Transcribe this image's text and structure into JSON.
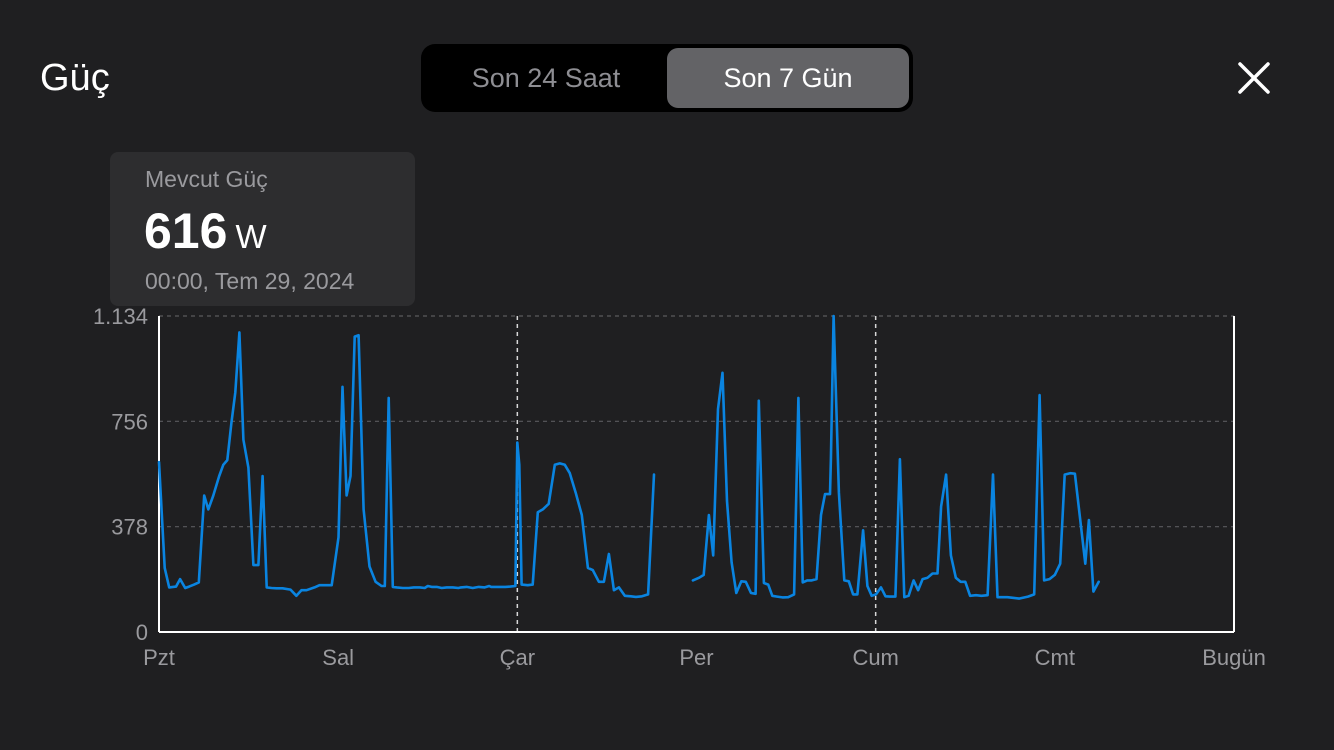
{
  "header": {
    "title": "Güç",
    "tabs": [
      {
        "label": "Son 24 Saat",
        "active": false
      },
      {
        "label": "Son 7 Gün",
        "active": true
      }
    ],
    "close_icon": "close-icon"
  },
  "tooltip": {
    "label": "Mevcut Güç",
    "value": "616",
    "unit": "W",
    "date": "00:00, Tem 29, 2024"
  },
  "colors": {
    "background": "#1f1f21",
    "line": "#0a84e0",
    "grid": "#5a5a5e",
    "axis": "#ffffff",
    "muted_text": "#9a9a9e"
  },
  "chart_data": {
    "type": "line",
    "title": "",
    "xlabel": "",
    "ylabel": "",
    "ylim": [
      0,
      1134
    ],
    "yticks": [
      0,
      378,
      756,
      1134
    ],
    "ytick_labels": [
      "0",
      "378",
      "756",
      "1.134"
    ],
    "xlim": [
      0,
      6
    ],
    "xticks": [
      0,
      1,
      2,
      3,
      4,
      5,
      6
    ],
    "xtick_labels": [
      "Pzt",
      "Sal",
      "Çar",
      "Per",
      "Cum",
      "Cmt",
      "Bugün"
    ],
    "x_unit": "days since Pzt 00:00",
    "vertical_markers": [
      2,
      4
    ],
    "grid": true,
    "series": [
      {
        "name": "",
        "segments": [
          [
            [
              0.0,
              610
            ],
            [
              0.032,
              230
            ],
            [
              0.057,
              160
            ],
            [
              0.095,
              163
            ],
            [
              0.118,
              190
            ],
            [
              0.146,
              158
            ],
            [
              0.168,
              163
            ],
            [
              0.196,
              170
            ],
            [
              0.222,
              178
            ],
            [
              0.252,
              490
            ],
            [
              0.275,
              440
            ],
            [
              0.303,
              490
            ],
            [
              0.336,
              560
            ],
            [
              0.359,
              600
            ],
            [
              0.381,
              617
            ],
            [
              0.404,
              750
            ],
            [
              0.426,
              860
            ],
            [
              0.449,
              1075
            ],
            [
              0.471,
              690
            ],
            [
              0.499,
              590
            ],
            [
              0.527,
              240
            ],
            [
              0.555,
              240
            ],
            [
              0.578,
              560
            ],
            [
              0.601,
              160
            ],
            [
              0.628,
              158
            ],
            [
              0.656,
              157
            ],
            [
              0.69,
              157
            ],
            [
              0.734,
              152
            ],
            [
              0.767,
              130
            ],
            [
              0.795,
              150
            ],
            [
              0.823,
              150
            ],
            [
              0.868,
              160
            ],
            [
              0.896,
              168
            ],
            [
              0.93,
              168
            ],
            [
              0.964,
              168
            ],
            [
              1.002,
              340
            ],
            [
              1.024,
              880
            ],
            [
              1.047,
              490
            ],
            [
              1.069,
              560
            ],
            [
              1.092,
              1060
            ],
            [
              1.114,
              1065
            ],
            [
              1.142,
              440
            ],
            [
              1.175,
              235
            ],
            [
              1.209,
              180
            ],
            [
              1.242,
              165
            ],
            [
              1.26,
              165
            ],
            [
              1.282,
              840
            ],
            [
              1.305,
              162
            ],
            [
              1.327,
              160
            ],
            [
              1.361,
              158
            ],
            [
              1.394,
              158
            ],
            [
              1.422,
              160
            ],
            [
              1.456,
              160
            ],
            [
              1.483,
              158
            ],
            [
              1.5,
              165
            ],
            [
              1.522,
              162
            ],
            [
              1.55,
              162
            ],
            [
              1.578,
              158
            ],
            [
              1.606,
              160
            ],
            [
              1.64,
              160
            ],
            [
              1.671,
              158
            ],
            [
              1.685,
              160
            ],
            [
              1.717,
              162
            ],
            [
              1.751,
              158
            ],
            [
              1.785,
              162
            ],
            [
              1.818,
              160
            ],
            [
              1.843,
              165
            ],
            [
              1.854,
              162
            ],
            [
              1.877,
              162
            ],
            [
              1.933,
              162
            ],
            [
              1.961,
              163
            ],
            [
              1.989,
              165
            ],
            [
              2.0,
              680
            ],
            [
              2.011,
              600
            ],
            [
              2.024,
              170
            ],
            [
              2.058,
              168
            ],
            [
              2.086,
              170
            ],
            [
              2.114,
              430
            ],
            [
              2.142,
              440
            ],
            [
              2.175,
              460
            ],
            [
              2.209,
              600
            ],
            [
              2.237,
              605
            ],
            [
              2.265,
              600
            ],
            [
              2.293,
              570
            ],
            [
              2.326,
              500
            ],
            [
              2.36,
              420
            ],
            [
              2.394,
              230
            ],
            [
              2.421,
              222
            ],
            [
              2.455,
              180
            ],
            [
              2.483,
              180
            ],
            [
              2.511,
              280
            ],
            [
              2.539,
              150
            ],
            [
              2.567,
              160
            ],
            [
              2.6,
              130
            ],
            [
              2.634,
              128
            ],
            [
              2.662,
              126
            ],
            [
              2.696,
              128
            ],
            [
              2.73,
              135
            ],
            [
              2.763,
              565
            ]
          ],
          [
            [
              2.98,
              185
            ],
            [
              3.015,
              195
            ],
            [
              3.04,
              205
            ],
            [
              3.069,
              420
            ],
            [
              3.093,
              275
            ],
            [
              3.12,
              800
            ],
            [
              3.145,
              930
            ],
            [
              3.17,
              470
            ],
            [
              3.196,
              250
            ],
            [
              3.222,
              140
            ],
            [
              3.25,
              182
            ],
            [
              3.275,
              180
            ],
            [
              3.304,
              140
            ],
            [
              3.33,
              137
            ],
            [
              3.348,
              830
            ],
            [
              3.376,
              176
            ],
            [
              3.4,
              170
            ],
            [
              3.423,
              130
            ],
            [
              3.45,
              127
            ],
            [
              3.48,
              124
            ],
            [
              3.512,
              125
            ],
            [
              3.545,
              135
            ],
            [
              3.569,
              840
            ],
            [
              3.593,
              178
            ],
            [
              3.618,
              185
            ],
            [
              3.643,
              185
            ],
            [
              3.67,
              190
            ],
            [
              3.695,
              420
            ],
            [
              3.717,
              495
            ],
            [
              3.745,
              495
            ],
            [
              3.75,
              620
            ],
            [
              3.765,
              1134
            ],
            [
              3.795,
              500
            ],
            [
              3.825,
              185
            ],
            [
              3.85,
              182
            ],
            [
              3.874,
              135
            ],
            [
              3.898,
              135
            ],
            [
              3.93,
              365
            ],
            [
              3.954,
              165
            ],
            [
              3.978,
              130
            ],
            [
              4.002,
              135
            ],
            [
              4.03,
              160
            ],
            [
              4.055,
              128
            ],
            [
              4.08,
              127
            ],
            [
              4.11,
              127
            ],
            [
              4.135,
              620
            ],
            [
              4.16,
              125
            ],
            [
              4.184,
              130
            ],
            [
              4.212,
              185
            ],
            [
              4.237,
              150
            ],
            [
              4.262,
              190
            ],
            [
              4.29,
              195
            ],
            [
              4.317,
              210
            ],
            [
              4.345,
              210
            ],
            [
              4.365,
              450
            ],
            [
              4.393,
              565
            ],
            [
              4.42,
              275
            ],
            [
              4.447,
              195
            ],
            [
              4.474,
              180
            ],
            [
              4.5,
              180
            ],
            [
              4.527,
              130
            ],
            [
              4.56,
              132
            ],
            [
              4.59,
              130
            ],
            [
              4.625,
              132
            ],
            [
              4.655,
              565
            ],
            [
              4.68,
              125
            ],
            [
              4.707,
              125
            ],
            [
              4.735,
              125
            ],
            [
              4.76,
              123
            ],
            [
              4.8,
              120
            ],
            [
              4.85,
              127
            ],
            [
              4.885,
              135
            ],
            [
              4.915,
              850
            ],
            [
              4.94,
              185
            ],
            [
              4.97,
              190
            ],
            [
              5.0,
              205
            ],
            [
              5.03,
              245
            ],
            [
              5.055,
              565
            ],
            [
              5.085,
              570
            ],
            [
              5.112,
              568
            ],
            [
              5.17,
              245
            ],
            [
              5.19,
              402
            ],
            [
              5.215,
              145
            ],
            [
              5.245,
              180
            ]
          ]
        ]
      }
    ]
  }
}
